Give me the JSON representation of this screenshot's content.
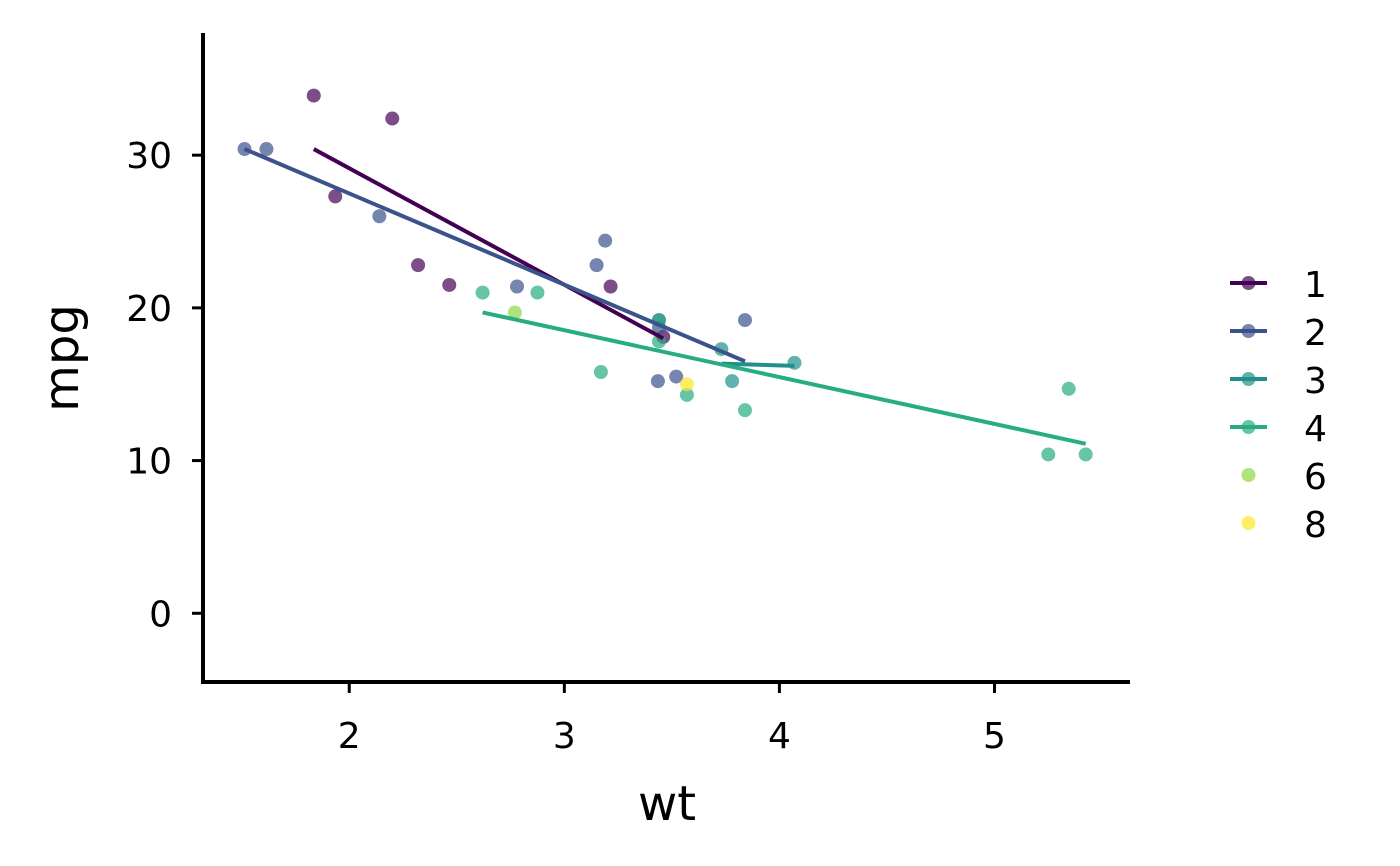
{
  "chart_data": {
    "type": "scatter",
    "title": "",
    "xlabel": "wt",
    "ylabel": "mpg",
    "xlim": [
      1.32,
      5.63
    ],
    "ylim": [
      -4.5,
      38.0
    ],
    "xticks": [
      {
        "value": 2,
        "label": "2"
      },
      {
        "value": 3,
        "label": "3"
      },
      {
        "value": 4,
        "label": "4"
      },
      {
        "value": 5,
        "label": "5"
      }
    ],
    "yticks": [
      {
        "value": 0,
        "label": "0"
      },
      {
        "value": 10,
        "label": "10"
      },
      {
        "value": 20,
        "label": "20"
      },
      {
        "value": 30,
        "label": "30"
      }
    ],
    "grid": false,
    "legend_position": "right",
    "series": [
      {
        "name": "1",
        "color": "#440154",
        "points": [
          [
            1.835,
            33.9
          ],
          [
            2.2,
            32.4
          ],
          [
            1.935,
            27.3
          ],
          [
            2.32,
            22.8
          ],
          [
            2.465,
            21.5
          ],
          [
            3.215,
            21.4
          ],
          [
            3.46,
            18.1
          ]
        ],
        "fit": [
          [
            1.835,
            30.4
          ],
          [
            3.46,
            18.0
          ]
        ]
      },
      {
        "name": "2",
        "color": "#3B528B",
        "points": [
          [
            1.513,
            30.4
          ],
          [
            1.615,
            30.4
          ],
          [
            2.14,
            26.0
          ],
          [
            2.78,
            21.4
          ],
          [
            3.15,
            22.8
          ],
          [
            3.19,
            24.4
          ],
          [
            3.44,
            18.7
          ],
          [
            3.44,
            19.2
          ],
          [
            3.435,
            15.2
          ],
          [
            3.52,
            15.5
          ],
          [
            3.84,
            19.2
          ]
        ],
        "fit": [
          [
            1.513,
            30.4
          ],
          [
            3.84,
            16.5
          ]
        ]
      },
      {
        "name": "3",
        "color": "#21908C",
        "points": [
          [
            3.73,
            17.3
          ],
          [
            3.78,
            15.2
          ],
          [
            4.07,
            16.4
          ]
        ],
        "fit": [
          [
            3.73,
            16.35
          ],
          [
            4.07,
            16.2
          ]
        ]
      },
      {
        "name": "4",
        "color": "#27AD81",
        "points": [
          [
            2.62,
            21.0
          ],
          [
            2.875,
            21.0
          ],
          [
            3.17,
            15.8
          ],
          [
            3.44,
            19.2
          ],
          [
            3.44,
            17.8
          ],
          [
            3.57,
            14.3
          ],
          [
            3.84,
            13.3
          ],
          [
            5.25,
            10.4
          ],
          [
            5.345,
            14.7
          ],
          [
            5.424,
            10.4
          ]
        ],
        "fit": [
          [
            2.62,
            19.7
          ],
          [
            5.424,
            11.1
          ]
        ]
      },
      {
        "name": "6",
        "color": "#8FD744",
        "points": [
          [
            2.77,
            19.7
          ]
        ],
        "fit": null
      },
      {
        "name": "8",
        "color": "#FDE725",
        "points": [
          [
            3.57,
            15.0
          ]
        ],
        "fit": null
      }
    ]
  }
}
